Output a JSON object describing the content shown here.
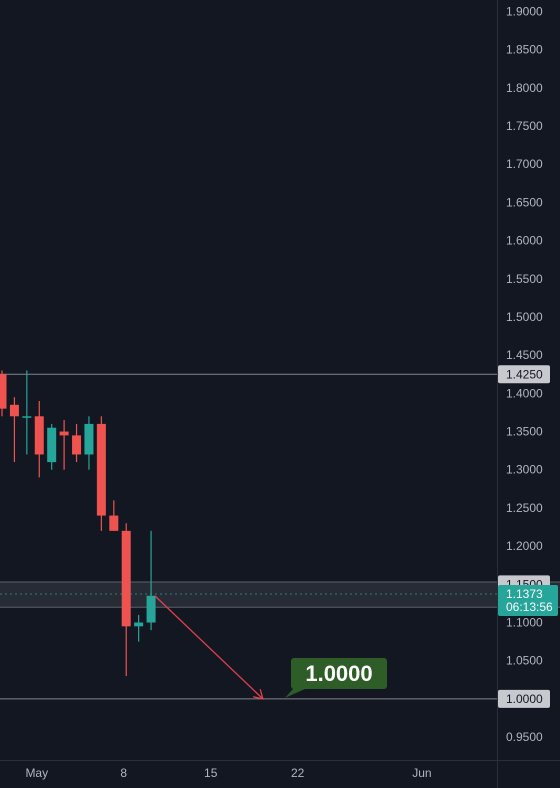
{
  "chart_data": {
    "type": "candlestick",
    "y_axis": {
      "min": 0.92,
      "max": 1.915,
      "ticks": [
        "1.9000",
        "1.8500",
        "1.8000",
        "1.7500",
        "1.7000",
        "1.6500",
        "1.6000",
        "1.5500",
        "1.5000",
        "1.4500",
        "1.4000",
        "1.3500",
        "1.3000",
        "1.2500",
        "1.2000",
        "1.1000",
        "1.0500",
        "0.9500"
      ]
    },
    "x_axis": {
      "labels": [
        {
          "text": "May",
          "day": 1
        },
        {
          "text": "8",
          "day": 8
        },
        {
          "text": "15",
          "day": 15
        },
        {
          "text": "22",
          "day": 22
        },
        {
          "text": "Jun",
          "day": 32
        }
      ],
      "day_range": [
        -1.8,
        37
      ]
    },
    "candles": [
      {
        "day": -1.8,
        "open": 1.425,
        "high": 1.43,
        "low": 1.37,
        "close": 1.38
      },
      {
        "day": -0.8,
        "open": 1.385,
        "high": 1.395,
        "low": 1.31,
        "close": 1.37
      },
      {
        "day": 0.2,
        "open": 1.37,
        "high": 1.43,
        "low": 1.32,
        "close": 1.37
      },
      {
        "day": 1.2,
        "open": 1.37,
        "high": 1.39,
        "low": 1.29,
        "close": 1.32
      },
      {
        "day": 2.2,
        "open": 1.31,
        "high": 1.36,
        "low": 1.3,
        "close": 1.355
      },
      {
        "day": 3.2,
        "open": 1.35,
        "high": 1.365,
        "low": 1.3,
        "close": 1.345
      },
      {
        "day": 4.2,
        "open": 1.345,
        "high": 1.36,
        "low": 1.31,
        "close": 1.32
      },
      {
        "day": 5.2,
        "open": 1.32,
        "high": 1.37,
        "low": 1.3,
        "close": 1.36
      },
      {
        "day": 6.2,
        "open": 1.36,
        "high": 1.37,
        "low": 1.22,
        "close": 1.24
      },
      {
        "day": 7.2,
        "open": 1.24,
        "high": 1.26,
        "low": 1.22,
        "close": 1.22
      },
      {
        "day": 8.2,
        "open": 1.22,
        "high": 1.23,
        "low": 1.03,
        "close": 1.095
      },
      {
        "day": 9.2,
        "open": 1.095,
        "high": 1.11,
        "low": 1.075,
        "close": 1.1
      },
      {
        "day": 10.2,
        "open": 1.1,
        "high": 1.22,
        "low": 1.09,
        "close": 1.135
      }
    ],
    "horizontal_lines": [
      1.425,
      1.0
    ],
    "support_zone": [
      1.12,
      1.153
    ],
    "projection": {
      "from_day": 10.5,
      "from_price": 1.135,
      "to_day": 19.2,
      "to_price": 1.0
    },
    "price_tags": [
      "1.4250",
      "1.1500",
      "1.0000"
    ],
    "current_price": {
      "value": "1.1373",
      "countdown": "06:13:56"
    },
    "target_label": "1.0000",
    "colors": {
      "background": "#131722",
      "up": "#26a69a",
      "down": "#ef5350",
      "grid_line": "#b2b5be",
      "axis_text": "#b2b5be",
      "zone": "#2a2e39",
      "arrow": "#e04050",
      "label_bg": "#2e5d28",
      "tag_bg": "#c7c9cf",
      "current_tag_bg": "#26a69a"
    }
  }
}
